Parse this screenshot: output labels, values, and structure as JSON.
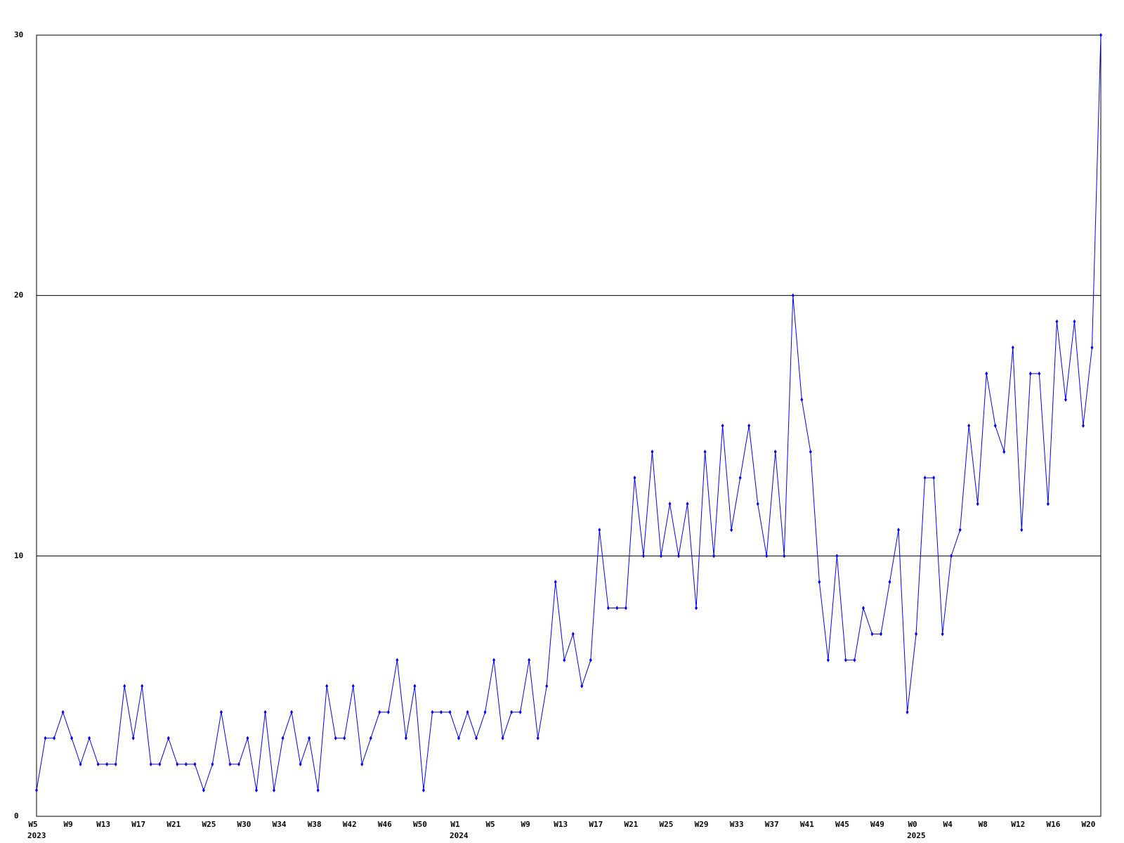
{
  "chart_data": {
    "type": "line",
    "categories": [
      "W5",
      null,
      null,
      null,
      "W9",
      null,
      null,
      null,
      "W13",
      null,
      null,
      null,
      "W17",
      null,
      null,
      null,
      "W21",
      null,
      null,
      null,
      "W25",
      null,
      null,
      null,
      "W30",
      null,
      null,
      null,
      "W34",
      null,
      null,
      null,
      "W38",
      null,
      null,
      null,
      "W42",
      null,
      null,
      null,
      "W46",
      null,
      null,
      null,
      "W50",
      null,
      null,
      null,
      "W1",
      null,
      null,
      null,
      "W5",
      null,
      null,
      null,
      "W9",
      null,
      null,
      null,
      "W13",
      null,
      null,
      null,
      "W17",
      null,
      null,
      null,
      "W21",
      null,
      null,
      null,
      "W25",
      null,
      null,
      null,
      "W29",
      null,
      null,
      null,
      "W33",
      null,
      null,
      null,
      "W37",
      null,
      null,
      null,
      "W41",
      null,
      null,
      null,
      "W45",
      null,
      null,
      null,
      "W49",
      null,
      null,
      null,
      "W0",
      null,
      null,
      null,
      "W4",
      null,
      null,
      null,
      "W8",
      null,
      null,
      null,
      "W12",
      null,
      null,
      null,
      "W16",
      null,
      null,
      null,
      "W20",
      null
    ],
    "category_years": [
      "2023",
      null,
      null,
      null,
      null,
      null,
      null,
      null,
      null,
      null,
      null,
      null,
      null,
      null,
      null,
      null,
      null,
      null,
      null,
      null,
      null,
      null,
      null,
      null,
      null,
      null,
      null,
      null,
      null,
      null,
      null,
      null,
      null,
      null,
      null,
      null,
      null,
      null,
      null,
      null,
      null,
      null,
      null,
      null,
      null,
      null,
      null,
      null,
      "2024",
      null,
      null,
      null,
      null,
      null,
      null,
      null,
      null,
      null,
      null,
      null,
      null,
      null,
      null,
      null,
      null,
      null,
      null,
      null,
      null,
      null,
      null,
      null,
      null,
      null,
      null,
      null,
      null,
      null,
      null,
      null,
      null,
      null,
      null,
      null,
      null,
      null,
      null,
      null,
      null,
      null,
      null,
      null,
      null,
      null,
      null,
      null,
      null,
      null,
      null,
      null,
      "2025",
      null,
      null,
      null,
      null,
      null,
      null,
      null,
      null,
      null,
      null,
      null,
      null,
      null,
      null,
      null,
      null,
      null,
      null,
      null,
      null,
      null
    ],
    "series": [
      {
        "color": "#0000ff",
        "values": [
          1,
          3,
          3,
          4,
          3,
          2,
          3,
          2,
          2,
          2,
          5,
          3,
          5,
          2,
          2,
          3,
          2,
          2,
          2,
          1,
          2,
          4,
          2,
          2,
          3,
          1,
          4,
          1,
          3,
          4,
          2,
          3,
          1,
          5,
          3,
          3,
          5,
          2,
          3,
          4,
          4,
          6,
          3,
          5,
          1,
          4,
          4,
          4,
          3,
          4,
          3,
          4,
          6,
          3,
          4,
          4,
          6,
          3,
          5,
          9,
          6,
          7,
          5,
          6,
          11,
          8,
          8,
          8,
          13,
          10,
          14,
          10,
          12,
          10,
          12,
          8,
          14,
          10,
          15,
          11,
          13,
          15,
          12,
          10,
          14,
          10,
          20,
          16,
          14,
          9,
          6,
          10,
          6,
          6,
          8,
          7,
          7,
          9,
          11,
          4,
          7,
          13,
          13,
          7,
          10,
          11,
          15,
          12,
          17,
          15,
          14,
          18,
          11,
          17,
          17,
          12,
          19,
          16,
          19,
          15,
          18,
          30
        ]
      }
    ],
    "ylim": [
      0,
      30
    ],
    "yticks": [
      0,
      10,
      20,
      30
    ],
    "grid": true
  }
}
